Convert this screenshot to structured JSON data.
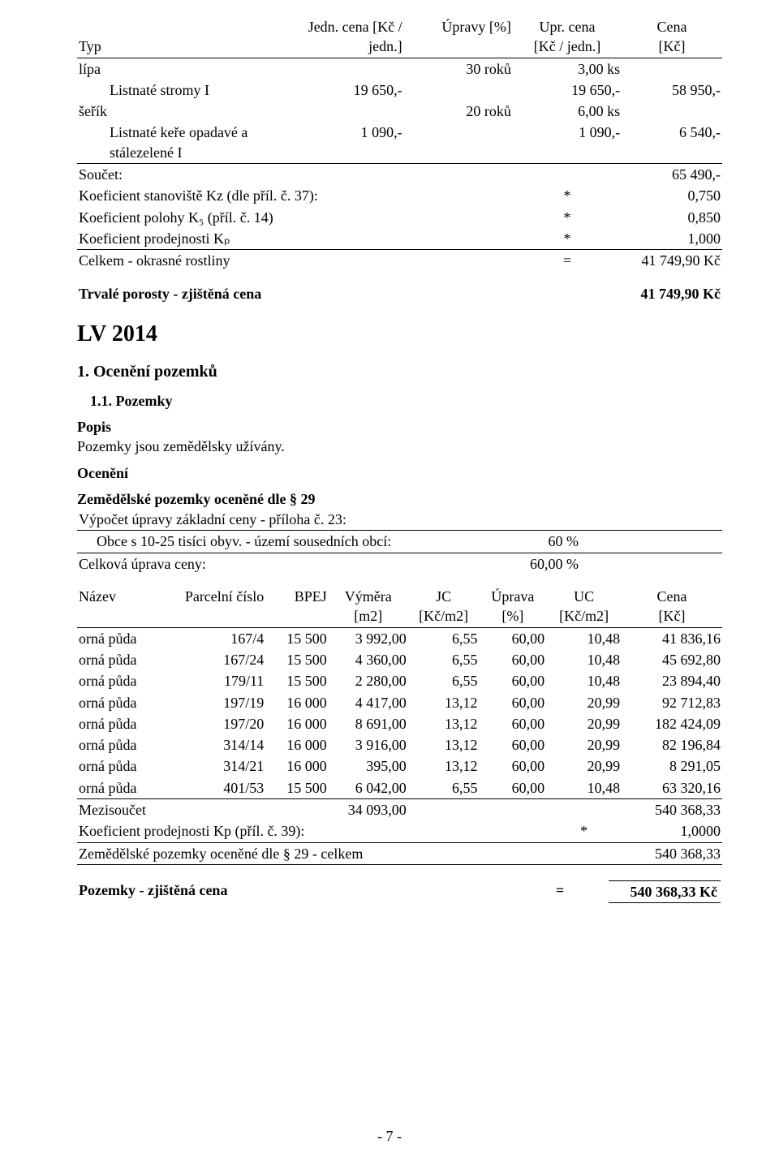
{
  "table1": {
    "headers": {
      "c1": "Typ",
      "c2_l1": "Jedn. cena [Kč /",
      "c2_l2": "jedn.]",
      "c3": "Úpravy [%]",
      "c4_l1": "Upr. cena",
      "c4_l2": "[Kč / jedn.]",
      "c5_l1": "Cena",
      "c5_l2": "[Kč]"
    },
    "rows": [
      {
        "c1": "lípa",
        "span23": "30 roků",
        "c4r": "3,00 ks",
        "c5": ""
      },
      {
        "indent": true,
        "c1": "Listnaté stromy I",
        "c2r": "19 650,-",
        "c4r": "19 650,-",
        "c5": "58 950,-"
      },
      {
        "c1": "šeřík",
        "span23": "20 roků",
        "c4r": "6,00 ks",
        "c5": ""
      },
      {
        "indent": true,
        "c1": "Listnaté keře opadavé a\nstálezelené I",
        "c2r": "1 090,-",
        "c4r": "1 090,-",
        "c5": "6 540,-"
      }
    ],
    "soucet_label": "Součet:",
    "soucet_val": "65 490,-",
    "koef1_label": "Koeficient stanoviště Kz (dle příl. č. 37):",
    "koef1_star": "*",
    "koef1_val": "0,750",
    "koef2_label": "Koeficient polohy K₅ (příl. č. 14)",
    "koef2_star": "*",
    "koef2_val": "0,850",
    "koef3_label": "Koeficient prodejnosti Kₚ",
    "koef3_star": "*",
    "koef3_val": "1,000",
    "celkem_label": "Celkem - okrasné rostliny",
    "celkem_eq": "=",
    "celkem_val": "41 749,90 Kč"
  },
  "trvale_label": "Trvalé porosty - zjištěná cena",
  "trvale_val": "41 749,90 Kč",
  "lv_title": "LV 2014",
  "sec1": "1. Ocenění pozemků",
  "sec1_1": "1.1. Pozemky",
  "popis_h": "Popis",
  "popis_t": "Pozemky jsou zemědělsky užívány.",
  "oceneni_h": "Ocenění",
  "zemed_h": "Zemědělské pozemky oceněné dle § 29",
  "vypoct": "Výpočet úpravy základní ceny - příloha č. 23:",
  "obce_label": "Obce s 10-25 tisíci obyv. - území sousedních obcí:",
  "obce_val": "60 %",
  "celk_upr_label": "Celková úprava ceny:",
  "celk_upr_val": "60,00 %",
  "zheaders": {
    "c1": "Název",
    "c2": "Parcelní číslo",
    "c3": "BPEJ",
    "c4_l1": "Výměra",
    "c4_l2": "[m2]",
    "c5_l1": "JC",
    "c5_l2": "[Kč/m2]",
    "c6_l1": "Úprava",
    "c6_l2": "[%]",
    "c7_l1": "UC",
    "c7_l2": "[Kč/m2]",
    "c8_l1": "Cena",
    "c8_l2": "[Kč]"
  },
  "zrows": [
    {
      "c1": "orná půda",
      "c2": "167/4",
      "c3": "15 500",
      "c4": "3 992,00",
      "c5": "6,55",
      "c6": "60,00",
      "c7": "10,48",
      "c8": "41 836,16"
    },
    {
      "c1": "orná půda",
      "c2": "167/24",
      "c3": "15 500",
      "c4": "4 360,00",
      "c5": "6,55",
      "c6": "60,00",
      "c7": "10,48",
      "c8": "45 692,80"
    },
    {
      "c1": "orná půda",
      "c2": "179/11",
      "c3": "15 500",
      "c4": "2 280,00",
      "c5": "6,55",
      "c6": "60,00",
      "c7": "10,48",
      "c8": "23 894,40"
    },
    {
      "c1": "orná půda",
      "c2": "197/19",
      "c3": "16 000",
      "c4": "4 417,00",
      "c5": "13,12",
      "c6": "60,00",
      "c7": "20,99",
      "c8": "92 712,83"
    },
    {
      "c1": "orná půda",
      "c2": "197/20",
      "c3": "16 000",
      "c4": "8 691,00",
      "c5": "13,12",
      "c6": "60,00",
      "c7": "20,99",
      "c8": "182 424,09"
    },
    {
      "c1": "orná půda",
      "c2": "314/14",
      "c3": "16 000",
      "c4": "3 916,00",
      "c5": "13,12",
      "c6": "60,00",
      "c7": "20,99",
      "c8": "82 196,84"
    },
    {
      "c1": "orná půda",
      "c2": "314/21",
      "c3": "16 000",
      "c4": "395,00",
      "c5": "13,12",
      "c6": "60,00",
      "c7": "20,99",
      "c8": "8 291,05"
    },
    {
      "c1": "orná půda",
      "c2": "401/53",
      "c3": "15 500",
      "c4": "6 042,00",
      "c5": "6,55",
      "c6": "60,00",
      "c7": "10,48",
      "c8": "63 320,16"
    }
  ],
  "mezis_label": "Mezisoučet",
  "mezis_vym": "34 093,00",
  "mezis_cena": "540 368,33",
  "kp_label": "Koeficient prodejnosti Kp (příl. č. 39):",
  "kp_star": "*",
  "kp_val": "1,0000",
  "zemed_celkem_label": "Zemědělské pozemky oceněné dle § 29 - celkem",
  "zemed_celkem_val": "540 368,33",
  "pozemky_zj_label": "Pozemky - zjištěná cena",
  "pozemky_zj_eq": "=",
  "pozemky_zj_val": "540 368,33 Kč",
  "footer": "- 7 -"
}
